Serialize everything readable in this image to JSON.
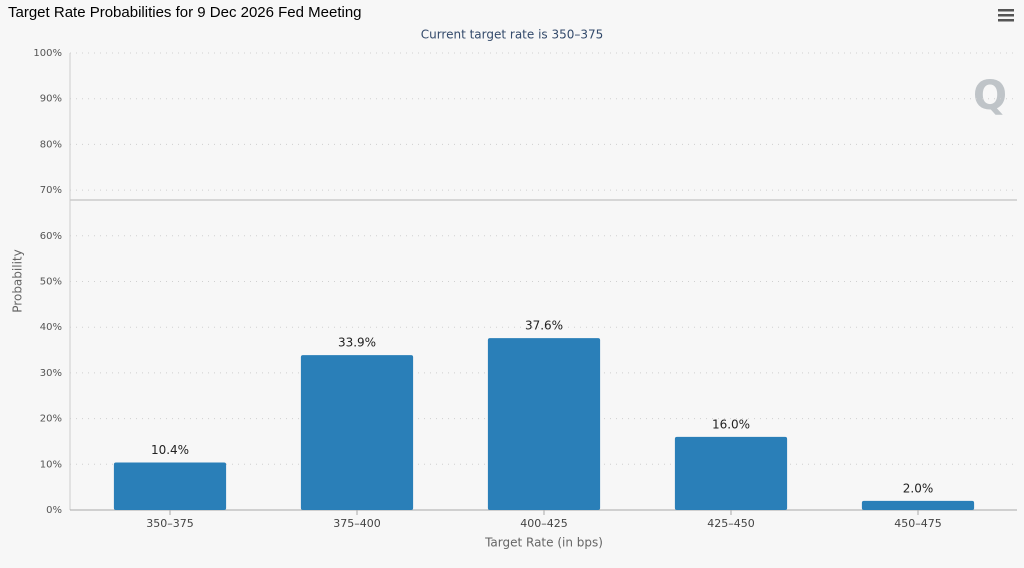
{
  "chart_data": {
    "type": "bar",
    "title": "Target Rate Probabilities for 9 Dec 2026 Fed Meeting",
    "subtitle": "Current target rate is 350–375",
    "watermark": "Q",
    "x_label": "Target Rate (in bps)",
    "y_label": "Probability",
    "categories": [
      "350–375",
      "375–400",
      "400–425",
      "425–450",
      "450–475"
    ],
    "values": [
      10.4,
      33.9,
      37.6,
      16.0,
      2.0
    ],
    "value_labels": [
      "10.4%",
      "33.9%",
      "37.6%",
      "16.0%",
      "2.0%"
    ],
    "color": "#2a7fb8",
    "ylim": [
      0,
      100
    ],
    "yticks": [
      {
        "value": 0,
        "label": "0%"
      },
      {
        "value": 10,
        "label": "10%"
      },
      {
        "value": 20,
        "label": "20%"
      },
      {
        "value": 30,
        "label": "30%"
      },
      {
        "value": 40,
        "label": "40%"
      },
      {
        "value": 50,
        "label": "50%"
      },
      {
        "value": 60,
        "label": "60%"
      },
      {
        "value": 70,
        "label": "70%"
      },
      {
        "value": 80,
        "label": "80%"
      },
      {
        "value": 90,
        "label": "90%"
      },
      {
        "value": 100,
        "label": "100%"
      }
    ],
    "grid": true
  }
}
